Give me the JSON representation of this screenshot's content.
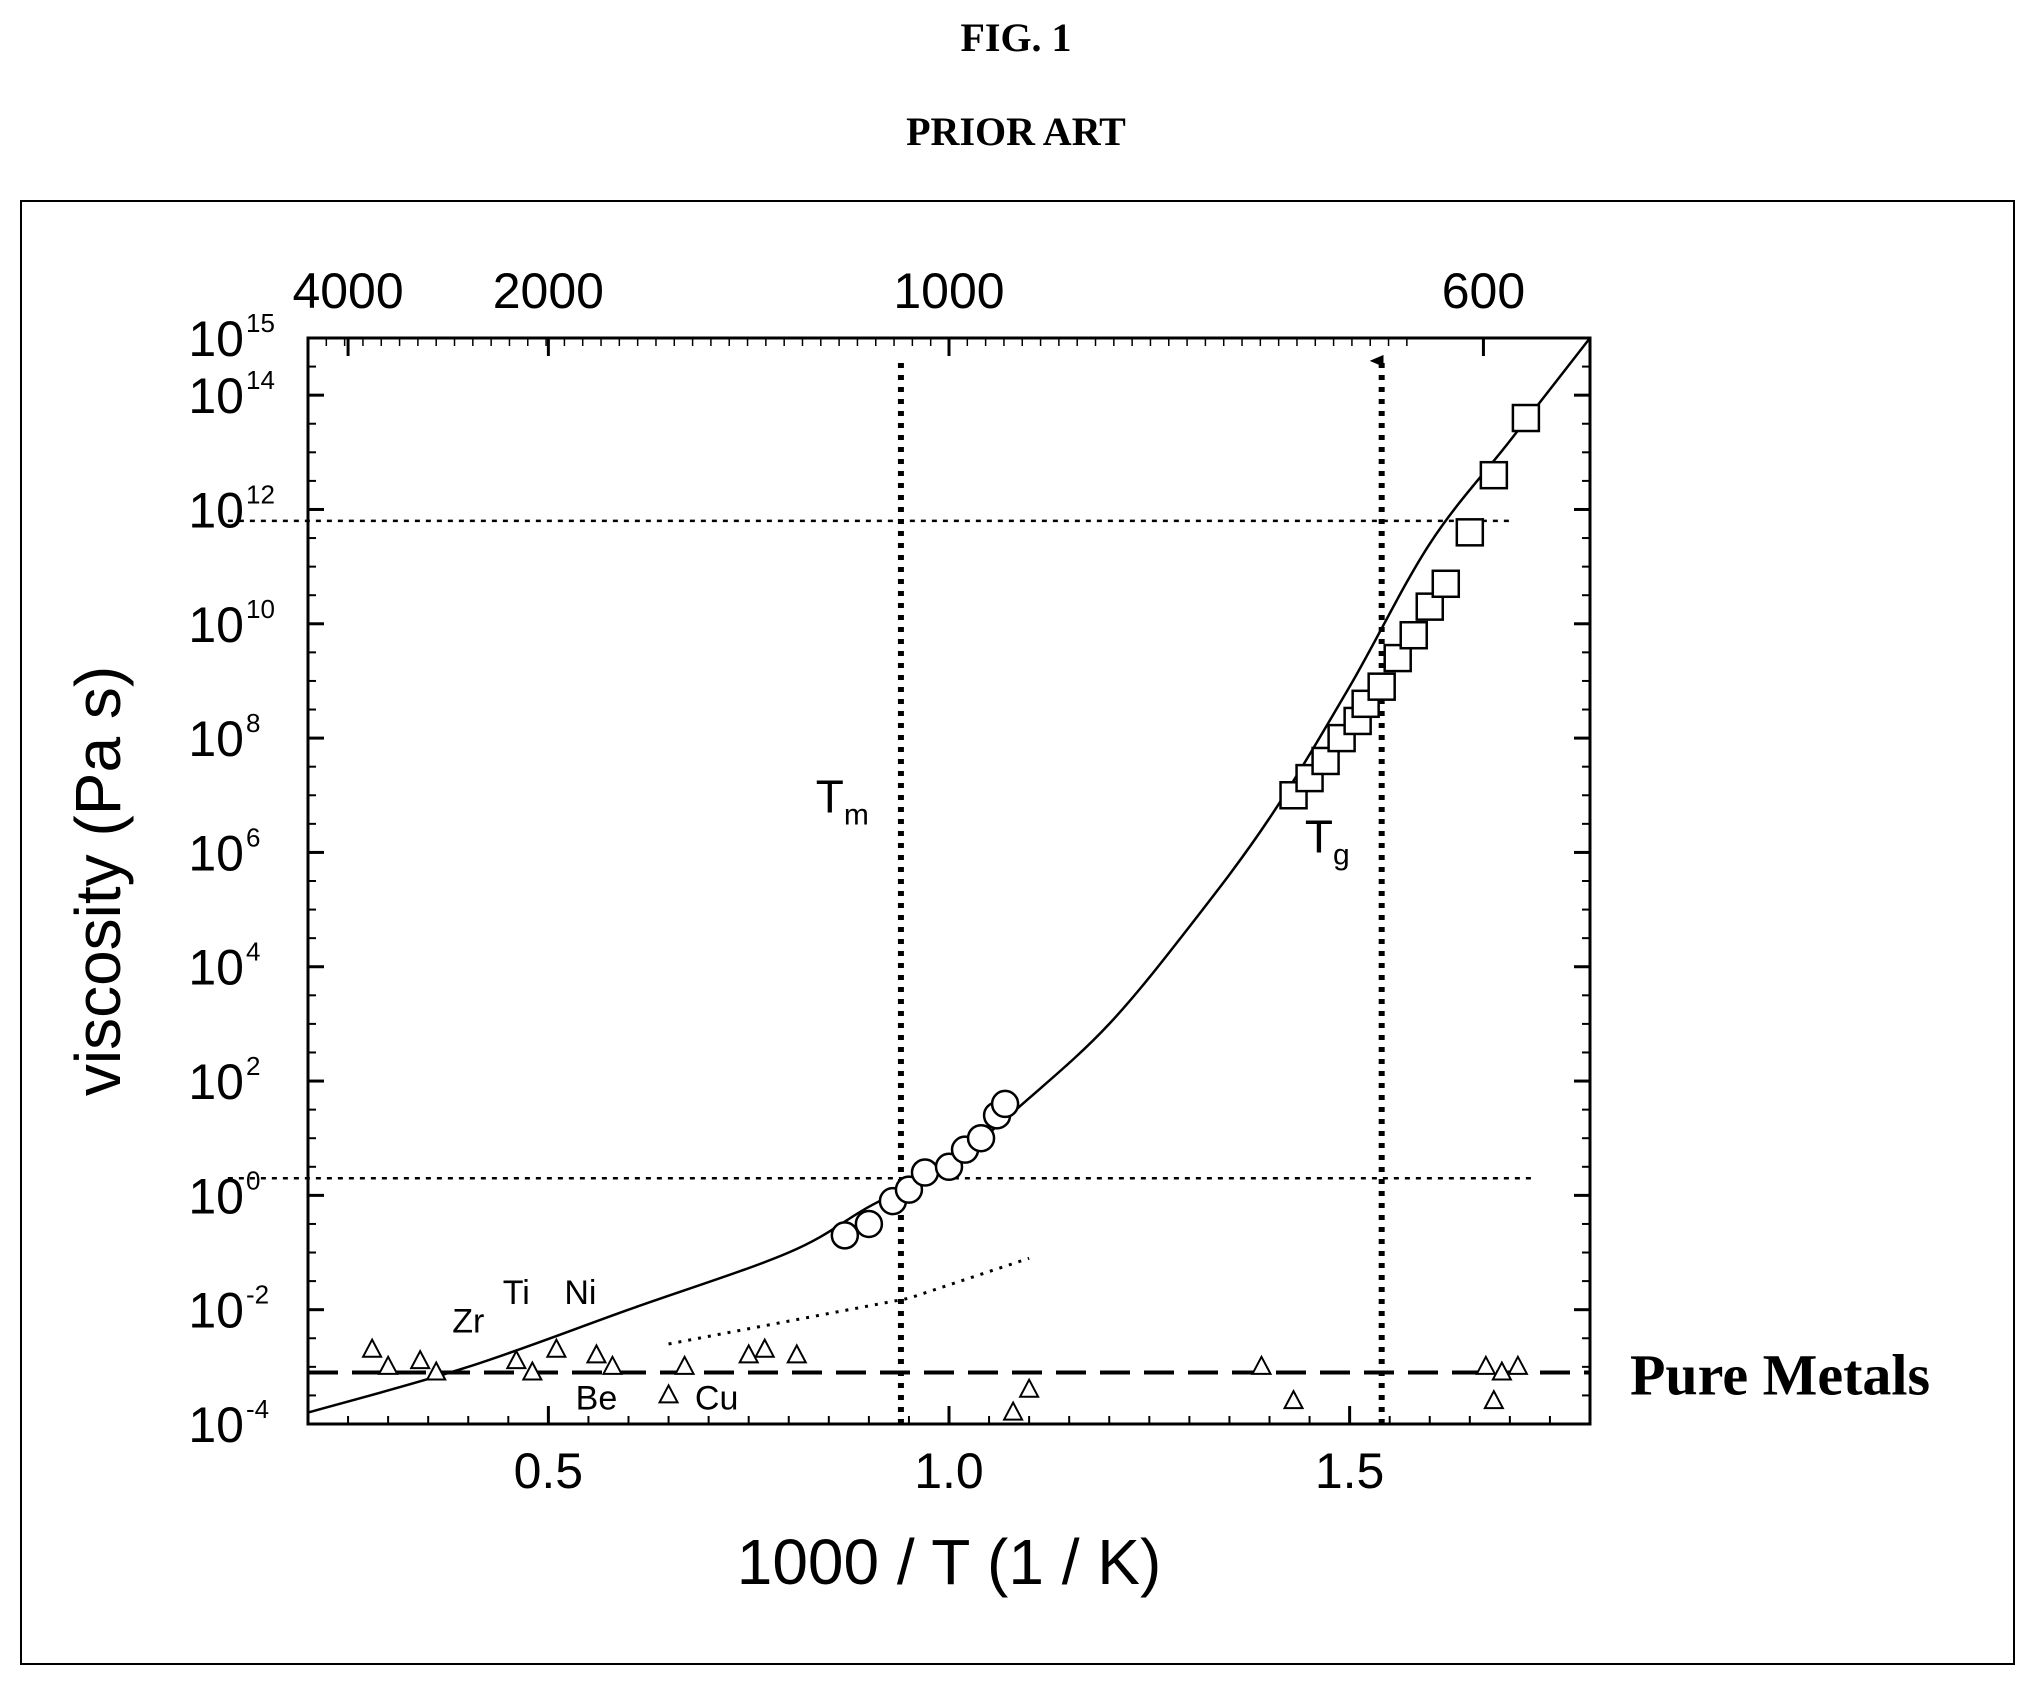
{
  "figure": {
    "number": "FIG. 1",
    "subtitle": "PRIOR ART"
  },
  "colors": {
    "ink": "#000000",
    "background": "#ffffff"
  },
  "chart_data": {
    "type": "scatter",
    "xlabel": "1000 / T (1 / K)",
    "ylabel": "viscosity (Pa s)",
    "xlim": [
      0.2,
      1.8
    ],
    "ylim": [
      -4,
      15
    ],
    "yscale": "log10",
    "grid": false,
    "x_ticks": [
      {
        "v": 0.5,
        "label": "0.5"
      },
      {
        "v": 1.0,
        "label": "1.0"
      },
      {
        "v": 1.5,
        "label": "1.5"
      }
    ],
    "y_ticks": [
      {
        "v": -4,
        "exp": "-4"
      },
      {
        "v": -2,
        "exp": "-2"
      },
      {
        "v": 0,
        "exp": "0"
      },
      {
        "v": 2,
        "exp": "2"
      },
      {
        "v": 4,
        "exp": "4"
      },
      {
        "v": 6,
        "exp": "6"
      },
      {
        "v": 8,
        "exp": "8"
      },
      {
        "v": 10,
        "exp": "10"
      },
      {
        "v": 12,
        "exp": "12"
      },
      {
        "v": 14,
        "exp": "14"
      },
      {
        "v": 15,
        "exp": "15"
      }
    ],
    "y_tick_base": "10",
    "top_axis_label": "",
    "top_ticks": [
      {
        "x": 0.25,
        "label": "4000"
      },
      {
        "x": 0.5,
        "label": "2000"
      },
      {
        "x": 1.0,
        "label": "1000"
      },
      {
        "x": 1.667,
        "label": "600"
      }
    ],
    "series": [
      {
        "marker": "circle",
        "x": [
          0.87,
          0.9,
          0.93,
          0.95,
          0.97,
          1.0,
          1.02,
          1.04,
          1.06,
          1.07
        ],
        "y": [
          -0.7,
          -0.5,
          -0.1,
          0.1,
          0.4,
          0.5,
          0.8,
          1.0,
          1.4,
          1.6
        ]
      },
      {
        "marker": "square",
        "x": [
          1.43,
          1.45,
          1.47,
          1.49,
          1.51,
          1.52,
          1.54,
          1.56,
          1.58,
          1.6,
          1.62,
          1.65,
          1.68,
          1.72
        ],
        "y": [
          7.0,
          7.3,
          7.6,
          8.0,
          8.3,
          8.6,
          8.9,
          9.4,
          9.8,
          10.3,
          10.7,
          11.6,
          12.6,
          13.6
        ]
      },
      {
        "marker": "triangle",
        "x": [
          0.28,
          0.3,
          0.34,
          0.36,
          0.46,
          0.48,
          0.51,
          0.56,
          0.58,
          0.65,
          0.67,
          0.75,
          0.77,
          0.81,
          1.08,
          1.1,
          1.39,
          1.43,
          1.67,
          1.68,
          1.69,
          1.71
        ],
        "y": [
          -2.7,
          -3.0,
          -2.9,
          -3.1,
          -2.9,
          -3.1,
          -2.7,
          -2.8,
          -3.0,
          -3.5,
          -3.0,
          -2.8,
          -2.7,
          -2.8,
          -3.8,
          -3.4,
          -3.0,
          -3.6,
          -3.0,
          -3.6,
          -3.1,
          -3.0
        ]
      }
    ],
    "fit_curve": {
      "x": [
        0.2,
        0.4,
        0.6,
        0.8,
        0.9,
        1.0,
        1.1,
        1.2,
        1.3,
        1.4,
        1.5,
        1.6,
        1.7,
        1.8
      ],
      "y": [
        -3.8,
        -3.0,
        -2.0,
        -1.0,
        -0.2,
        0.55,
        1.7,
        3.0,
        4.7,
        6.6,
        8.9,
        11.4,
        13.2,
        15.0
      ]
    },
    "dotted_trend": {
      "x": [
        0.65,
        0.8,
        0.95,
        1.1
      ],
      "y": [
        -2.6,
        -2.2,
        -1.8,
        -1.1
      ]
    },
    "reference_lines": [
      {
        "orientation": "horizontal",
        "value": -3.1,
        "style": "dashed",
        "x_range": [
          0.2,
          1.8
        ]
      },
      {
        "orientation": "horizontal",
        "value": 11.8,
        "style": "dotted",
        "x_range": [
          0.1,
          1.7
        ]
      },
      {
        "orientation": "horizontal",
        "value": 0.3,
        "style": "dotted",
        "x_range": [
          0.1,
          1.73
        ]
      },
      {
        "orientation": "vertical",
        "value": 0.94,
        "style": "dotted",
        "y_range": [
          -4,
          14.6
        ]
      },
      {
        "orientation": "vertical",
        "value": 1.54,
        "style": "dotted-arrow",
        "y_range": [
          -4,
          14.6
        ]
      }
    ],
    "annotations": [
      {
        "text": "T",
        "sub": "m",
        "x": 0.9,
        "y": 6.7,
        "anchor": "end"
      },
      {
        "text": "T",
        "sub": "g",
        "x": 1.5,
        "y": 6.0,
        "anchor": "end"
      },
      {
        "text": "Zr",
        "x": 0.4,
        "y": -2.4,
        "anchor": "middle"
      },
      {
        "text": "Ti",
        "x": 0.46,
        "y": -1.9,
        "anchor": "middle"
      },
      {
        "text": "Ni",
        "x": 0.54,
        "y": -1.9,
        "anchor": "middle"
      },
      {
        "text": "Be",
        "x": 0.56,
        "y": -3.75,
        "anchor": "middle"
      },
      {
        "text": "Cu",
        "x": 0.71,
        "y": -3.75,
        "anchor": "middle"
      }
    ],
    "side_label": "Pure Metals"
  }
}
